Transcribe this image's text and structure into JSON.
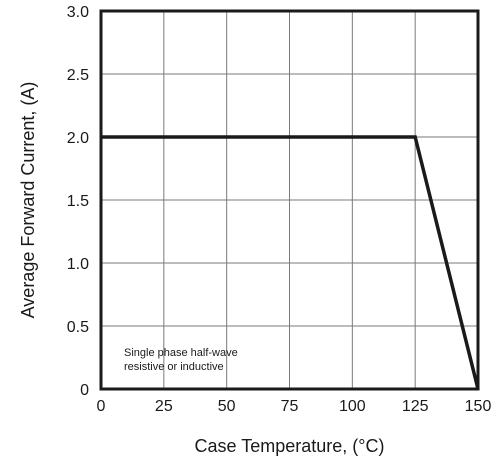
{
  "chart_data": {
    "type": "line",
    "title": "",
    "xlabel": "Case Temperature, (°C)",
    "ylabel": "Average Forward Current, (A)",
    "xlim": [
      0,
      150
    ],
    "ylim": [
      0,
      3.0
    ],
    "x_ticks": [
      "0",
      "25",
      "50",
      "75",
      "100",
      "125",
      "150"
    ],
    "y_ticks": [
      "0",
      "0.5",
      "1.0",
      "1.5",
      "2.0",
      "2.5",
      "3.0"
    ],
    "grid": true,
    "series": [
      {
        "color": "#1a1a1a",
        "x": [
          0,
          125,
          150
        ],
        "y": [
          2.0,
          2.0,
          0
        ]
      }
    ],
    "annotations": [
      "Single phase half-wave",
      "resistive or inductive"
    ]
  }
}
